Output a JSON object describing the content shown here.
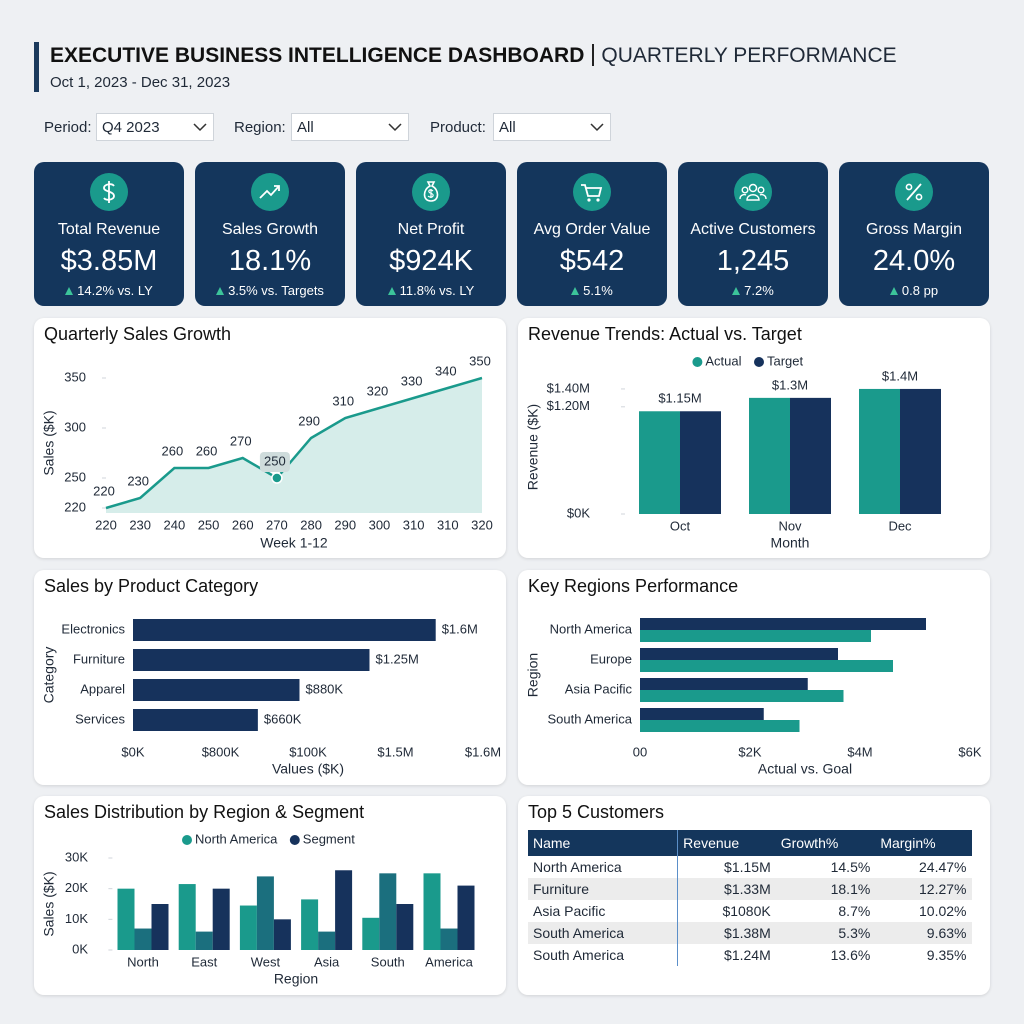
{
  "header": {
    "title": "EXECUTIVE BUSINESS INTELLIGENCE DASHBOARD",
    "subtitle": "QUARTERLY PERFORMANCE",
    "date_range": "Oct 1, 2023 - Dec 31, 2023"
  },
  "filters": [
    {
      "label": "Period:",
      "value": "Q4 2023"
    },
    {
      "label": "Region:",
      "value": "All"
    },
    {
      "label": "Product:",
      "value": "All"
    }
  ],
  "kpis": [
    {
      "label": "Total Revenue",
      "value": "$3.85M",
      "change": "14.2% vs. LY"
    },
    {
      "label": "Sales Growth",
      "value": "18.1%",
      "change": "3.5% vs. Targets"
    },
    {
      "label": "Net Profit",
      "value": "$924K",
      "change": "11.8% vs. LY"
    },
    {
      "label": "Avg Order Value",
      "value": "$542",
      "change": "5.1%"
    },
    {
      "label": "Active Customers",
      "value": "1,245",
      "change": "7.2%"
    },
    {
      "label": "Gross Margin",
      "value": "24.0%",
      "change": "0.8 pp"
    }
  ],
  "chart_data": [
    {
      "type": "line",
      "title": "Quarterly Sales Growth",
      "xlabel": "Week 1-12",
      "ylabel": "Sales ($K)",
      "categories": [
        "220",
        "230",
        "240",
        "250",
        "260",
        "270",
        "280",
        "290",
        "300",
        "310",
        "310",
        "320"
      ],
      "values": [
        220,
        230,
        260,
        260,
        270,
        250,
        290,
        310,
        320,
        330,
        340,
        350
      ],
      "color": "#1a9a8c",
      "area": true,
      "highlight": 5,
      "ylim": [
        215,
        355
      ],
      "yticks": [
        220,
        250,
        300,
        350
      ]
    },
    {
      "type": "bar",
      "title": "Revenue Trends: Actual vs. Target",
      "xlabel": "Month",
      "ylabel": "Revenue ($K)",
      "categories": [
        "Oct",
        "Nov",
        "Dec"
      ],
      "series": [
        {
          "name": "Actual",
          "color": "#1a9a8c",
          "values": [
            1150000,
            1300000,
            1400000
          ],
          "value_labels": [
            "$1.15M",
            "$1.3M",
            "$1.4M"
          ]
        },
        {
          "name": "Target",
          "color": "#16325c",
          "values": [
            1150000,
            1300000,
            1400000
          ]
        }
      ],
      "ylim": [
        0,
        1500000
      ],
      "yticks": [
        {
          "value": 0,
          "label": "$0K"
        },
        {
          "value": 1200000,
          "label": "$1.20M"
        },
        {
          "value": 1400000,
          "label": "$1.40M"
        }
      ],
      "legend": "top"
    },
    {
      "type": "hbar",
      "title": "Sales by Product Category",
      "xlabel": "Values ($K)",
      "ylabel": "Category",
      "categories": [
        "Electronics",
        "Furniture",
        "Apparel",
        "Services"
      ],
      "values": [
        1600000,
        1250000,
        880000,
        660000
      ],
      "value_labels": [
        "$1.6M",
        "$1.25M",
        "$880K",
        "$660K"
      ],
      "color": "#16325c",
      "xlim": [
        0,
        1850000
      ],
      "xtick_labels": [
        "$0K",
        "$800K",
        "$100K",
        "$1.5M",
        "$1.6M"
      ]
    },
    {
      "type": "hbar",
      "title": "Key Regions Performance",
      "xlabel": "Actual vs. Goal",
      "ylabel": "Region",
      "categories": [
        "North America",
        "Europe",
        "Asia Pacific",
        "South America"
      ],
      "series": [
        {
          "color": "#16325c",
          "values": [
            5.2,
            3.6,
            3.05,
            2.25
          ]
        },
        {
          "color": "#1a9a8c",
          "values": [
            4.2,
            4.6,
            3.7,
            2.9
          ]
        }
      ],
      "xlim": [
        0,
        6
      ],
      "xtick_labels": [
        "00",
        "$2K",
        "$4M",
        "$6K"
      ]
    },
    {
      "type": "bar",
      "title": "Sales Distribution by Region & Segment",
      "xlabel": "Region",
      "ylabel": "Sales ($K)",
      "categories": [
        "North",
        "East",
        "West",
        "Asia",
        "South",
        "America"
      ],
      "series": [
        {
          "name": "North America",
          "color": "#1a9a8c",
          "values": [
            20000,
            21500,
            14500,
            16500,
            10500,
            25000
          ]
        },
        {
          "color": "#1b6f7e",
          "values": [
            7000,
            6000,
            24000,
            6000,
            25000,
            7000
          ]
        },
        {
          "name": "Segment",
          "color": "#16325c",
          "values": [
            15000,
            20000,
            10000,
            26000,
            15000,
            21000
          ]
        }
      ],
      "ylim": [
        0,
        30000
      ],
      "yticks": [
        {
          "value": 0,
          "label": "0K"
        },
        {
          "value": 10000,
          "label": "10K"
        },
        {
          "value": 20000,
          "label": "20K"
        },
        {
          "value": 30000,
          "label": "30K"
        }
      ],
      "legend": "top"
    }
  ],
  "table": {
    "title": "Top 5 Customers",
    "columns": [
      "Name",
      "Revenue",
      "Growth%",
      "Margin%"
    ],
    "rows": [
      [
        "North America",
        "$1.15M",
        "14.5%",
        "24.47%"
      ],
      [
        "Furniture",
        "$1.33M",
        "18.1%",
        "12.27%"
      ],
      [
        "Asia Pacific",
        "$1080K",
        "8.7%",
        "10.02%"
      ],
      [
        "South America",
        "$1.38M",
        "5.3%",
        "9.63%"
      ],
      [
        "South America",
        "$1.24M",
        "13.6%",
        "9.35%"
      ]
    ]
  }
}
